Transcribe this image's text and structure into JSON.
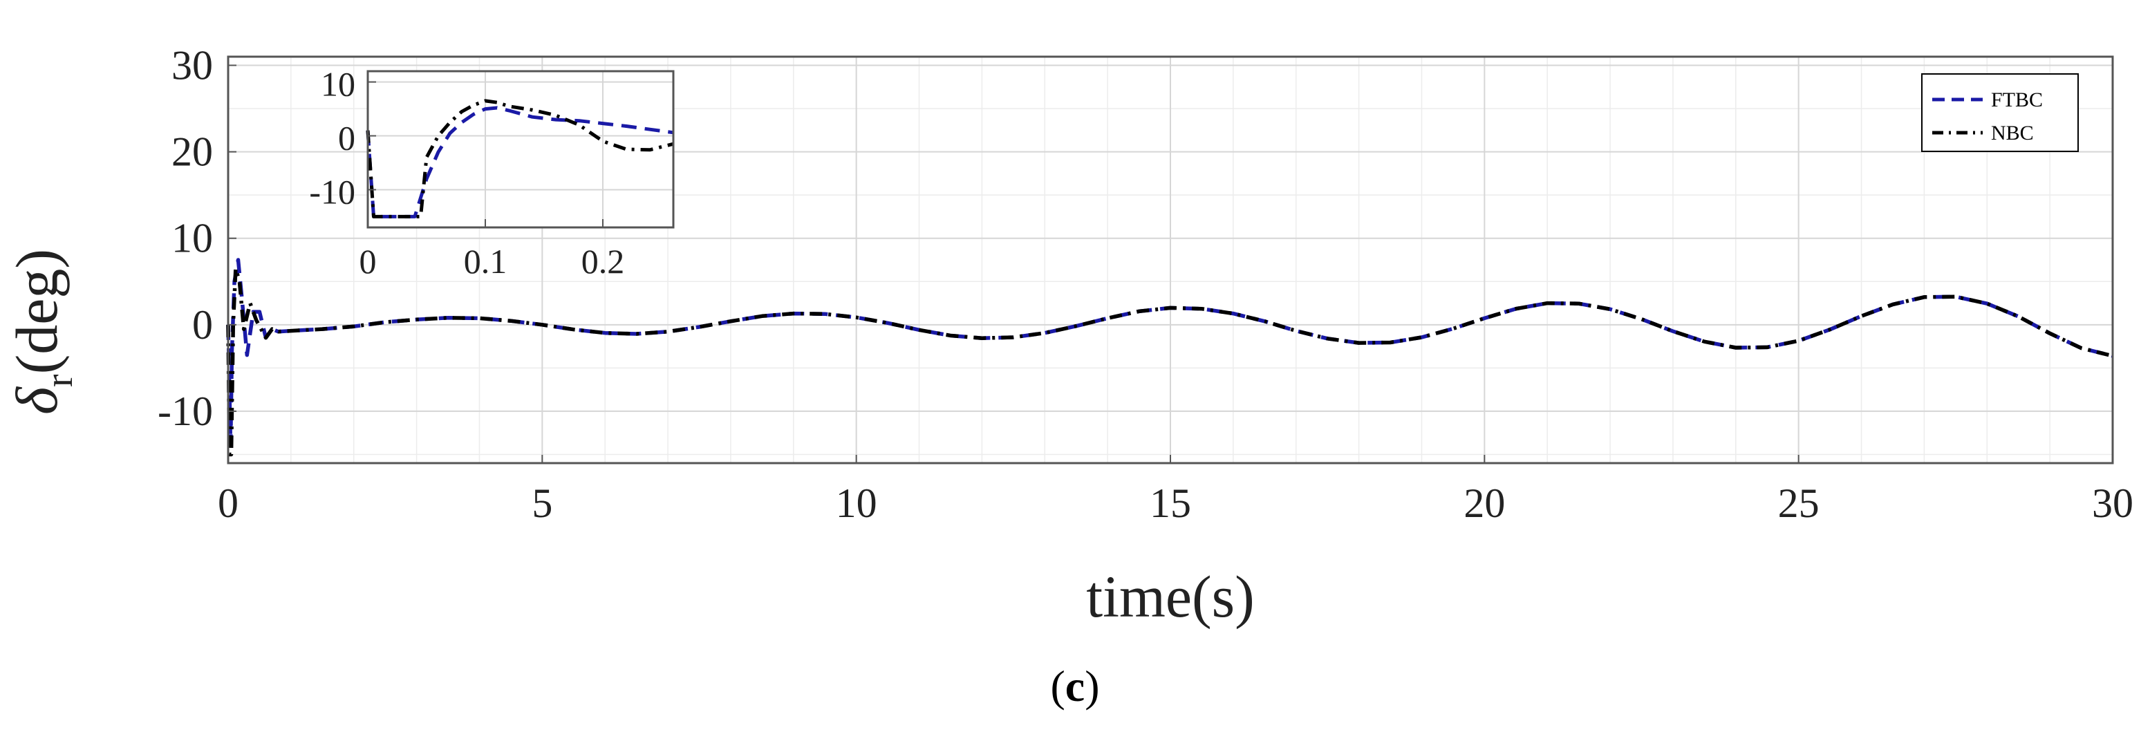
{
  "caption": {
    "open": "(",
    "letter": "c",
    "close": ")"
  },
  "chart_data": [
    {
      "type": "line",
      "xlabel": "time(s)",
      "ylabel": {
        "symbol": "δ",
        "subscript": "r",
        "unit": "(deg)"
      },
      "xlim": [
        0,
        30
      ],
      "ylim": [
        -16,
        31
      ],
      "xticks": [
        0,
        5,
        10,
        15,
        20,
        25,
        30
      ],
      "yticks": [
        -10,
        0,
        10,
        20,
        30
      ],
      "grid": true,
      "legend": "top-right",
      "series": [
        {
          "name": "FTBC",
          "style": "dashed",
          "color": "#1a1aa6",
          "points": [
            [
              0,
              0
            ],
            [
              0.04,
              -14
            ],
            [
              0.06,
              -3
            ],
            [
              0.1,
              5
            ],
            [
              0.16,
              7.5
            ],
            [
              0.22,
              3
            ],
            [
              0.3,
              -3.5
            ],
            [
              0.4,
              1.5
            ],
            [
              0.5,
              1.5
            ],
            [
              0.6,
              -1.5
            ],
            [
              0.7,
              -0.5
            ],
            [
              0.8,
              -0.8
            ],
            [
              1.0,
              -0.7
            ],
            [
              1.5,
              -0.5
            ],
            [
              2.0,
              -0.2
            ],
            [
              2.5,
              0.3
            ],
            [
              3.0,
              0.6
            ],
            [
              3.5,
              0.8
            ],
            [
              4.0,
              0.75
            ],
            [
              4.5,
              0.45
            ],
            [
              5.0,
              0.0
            ],
            [
              5.5,
              -0.55
            ],
            [
              6.0,
              -0.95
            ],
            [
              6.5,
              -1.05
            ],
            [
              7.0,
              -0.8
            ],
            [
              7.5,
              -0.25
            ],
            [
              8.0,
              0.4
            ],
            [
              8.5,
              1.0
            ],
            [
              9.0,
              1.3
            ],
            [
              9.5,
              1.25
            ],
            [
              10.0,
              0.85
            ],
            [
              10.5,
              0.2
            ],
            [
              11.0,
              -0.6
            ],
            [
              11.5,
              -1.25
            ],
            [
              12.0,
              -1.55
            ],
            [
              12.5,
              -1.45
            ],
            [
              13.0,
              -0.95
            ],
            [
              13.5,
              -0.15
            ],
            [
              14.0,
              0.75
            ],
            [
              14.5,
              1.55
            ],
            [
              15.0,
              1.95
            ],
            [
              15.5,
              1.85
            ],
            [
              16.0,
              1.3
            ],
            [
              16.5,
              0.4
            ],
            [
              17.0,
              -0.7
            ],
            [
              17.5,
              -1.6
            ],
            [
              18.0,
              -2.1
            ],
            [
              18.5,
              -2.05
            ],
            [
              19.0,
              -1.45
            ],
            [
              19.5,
              -0.45
            ],
            [
              20.0,
              0.75
            ],
            [
              20.5,
              1.85
            ],
            [
              21.0,
              2.5
            ],
            [
              21.5,
              2.45
            ],
            [
              22.0,
              1.8
            ],
            [
              22.5,
              0.65
            ],
            [
              23.0,
              -0.75
            ],
            [
              23.5,
              -1.95
            ],
            [
              24.0,
              -2.65
            ],
            [
              24.5,
              -2.6
            ],
            [
              25.0,
              -1.85
            ],
            [
              25.5,
              -0.55
            ],
            [
              26.0,
              1.0
            ],
            [
              26.5,
              2.35
            ],
            [
              27.0,
              3.2
            ],
            [
              27.5,
              3.25
            ],
            [
              28.0,
              2.45
            ],
            [
              28.5,
              0.95
            ],
            [
              29.0,
              -1.0
            ],
            [
              29.5,
              -2.7
            ],
            [
              30.0,
              -3.6
            ]
          ]
        },
        {
          "name": "NBC",
          "style": "dash-dot",
          "color": "#000000",
          "points": [
            [
              0,
              0
            ],
            [
              0.02,
              -15
            ],
            [
              0.05,
              -15
            ],
            [
              0.08,
              0
            ],
            [
              0.12,
              6.5
            ],
            [
              0.18,
              5
            ],
            [
              0.25,
              -0.5
            ],
            [
              0.35,
              2.5
            ],
            [
              0.45,
              0.5
            ],
            [
              0.6,
              -1.5
            ],
            [
              0.7,
              -0.5
            ],
            [
              0.8,
              -0.8
            ],
            [
              1.0,
              -0.7
            ],
            [
              1.5,
              -0.5
            ],
            [
              2.0,
              -0.2
            ],
            [
              2.5,
              0.3
            ],
            [
              3.0,
              0.6
            ],
            [
              3.5,
              0.8
            ],
            [
              4.0,
              0.75
            ],
            [
              4.5,
              0.45
            ],
            [
              5.0,
              0.0
            ],
            [
              5.5,
              -0.55
            ],
            [
              6.0,
              -0.95
            ],
            [
              6.5,
              -1.05
            ],
            [
              7.0,
              -0.8
            ],
            [
              7.5,
              -0.25
            ],
            [
              8.0,
              0.4
            ],
            [
              8.5,
              1.0
            ],
            [
              9.0,
              1.3
            ],
            [
              9.5,
              1.25
            ],
            [
              10.0,
              0.85
            ],
            [
              10.5,
              0.2
            ],
            [
              11.0,
              -0.6
            ],
            [
              11.5,
              -1.25
            ],
            [
              12.0,
              -1.55
            ],
            [
              12.5,
              -1.45
            ],
            [
              13.0,
              -0.95
            ],
            [
              13.5,
              -0.15
            ],
            [
              14.0,
              0.75
            ],
            [
              14.5,
              1.55
            ],
            [
              15.0,
              1.95
            ],
            [
              15.5,
              1.85
            ],
            [
              16.0,
              1.3
            ],
            [
              16.5,
              0.4
            ],
            [
              17.0,
              -0.7
            ],
            [
              17.5,
              -1.6
            ],
            [
              18.0,
              -2.1
            ],
            [
              18.5,
              -2.05
            ],
            [
              19.0,
              -1.45
            ],
            [
              19.5,
              -0.45
            ],
            [
              20.0,
              0.75
            ],
            [
              20.5,
              1.85
            ],
            [
              21.0,
              2.5
            ],
            [
              21.5,
              2.45
            ],
            [
              22.0,
              1.8
            ],
            [
              22.5,
              0.65
            ],
            [
              23.0,
              -0.75
            ],
            [
              23.5,
              -1.95
            ],
            [
              24.0,
              -2.65
            ],
            [
              24.5,
              -2.6
            ],
            [
              25.0,
              -1.85
            ],
            [
              25.5,
              -0.55
            ],
            [
              26.0,
              1.0
            ],
            [
              26.5,
              2.35
            ],
            [
              27.0,
              3.2
            ],
            [
              27.5,
              3.25
            ],
            [
              28.0,
              2.45
            ],
            [
              28.5,
              0.95
            ],
            [
              29.0,
              -1.0
            ],
            [
              29.5,
              -2.7
            ],
            [
              30.0,
              -3.6
            ]
          ]
        }
      ]
    },
    {
      "type": "line",
      "inset": true,
      "xlim": [
        0,
        0.26
      ],
      "ylim": [
        -17,
        12
      ],
      "xticks": [
        0,
        0.1,
        0.2
      ],
      "xtick_labels": [
        "0",
        "0.1",
        "0.2"
      ],
      "yticks": [
        -10,
        0,
        10
      ],
      "grid": true,
      "series": [
        {
          "name": "FTBC",
          "style": "dashed",
          "color": "#1a1aa6",
          "points": [
            [
              0.0,
              1
            ],
            [
              0.005,
              -15
            ],
            [
              0.04,
              -15
            ],
            [
              0.05,
              -8
            ],
            [
              0.06,
              -3
            ],
            [
              0.07,
              0.5
            ],
            [
              0.08,
              2.5
            ],
            [
              0.09,
              4
            ],
            [
              0.1,
              5
            ],
            [
              0.11,
              5.2
            ],
            [
              0.12,
              4.7
            ],
            [
              0.14,
              3.5
            ],
            [
              0.16,
              3
            ],
            [
              0.18,
              2.8
            ],
            [
              0.2,
              2.3
            ],
            [
              0.22,
              1.8
            ],
            [
              0.24,
              1.2
            ],
            [
              0.26,
              0.6
            ]
          ]
        },
        {
          "name": "NBC",
          "style": "dash-dot",
          "color": "#000000",
          "points": [
            [
              0.0,
              1
            ],
            [
              0.005,
              -15
            ],
            [
              0.04,
              -15
            ],
            [
              0.045,
              -15
            ],
            [
              0.05,
              -4
            ],
            [
              0.06,
              0
            ],
            [
              0.07,
              2.5
            ],
            [
              0.08,
              4.5
            ],
            [
              0.09,
              5.7
            ],
            [
              0.1,
              6.5
            ],
            [
              0.11,
              6.2
            ],
            [
              0.12,
              5.5
            ],
            [
              0.14,
              4.8
            ],
            [
              0.16,
              3.8
            ],
            [
              0.18,
              2
            ],
            [
              0.2,
              -1
            ],
            [
              0.22,
              -2.5
            ],
            [
              0.24,
              -2.6
            ],
            [
              0.26,
              -1.5
            ]
          ]
        }
      ]
    }
  ]
}
